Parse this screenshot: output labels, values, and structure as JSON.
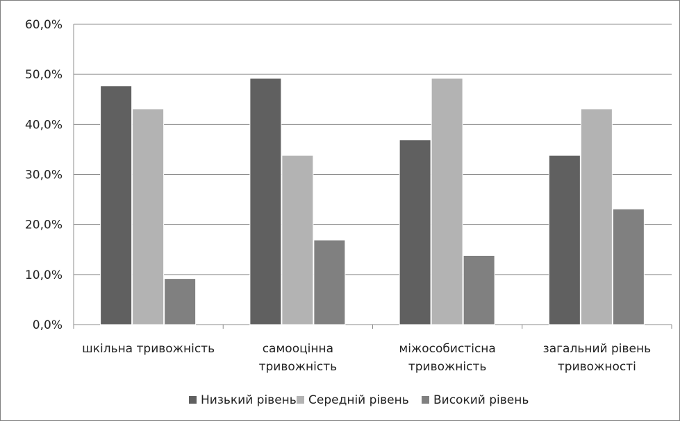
{
  "chart_data": {
    "type": "bar",
    "categories": [
      [
        "шкільна тривожність"
      ],
      [
        "самооцінна",
        "тривожність"
      ],
      [
        "міжособистісна",
        "тривожність"
      ],
      [
        "загальний рівень",
        "тривожності"
      ]
    ],
    "series": [
      {
        "name": "Низький рівень",
        "color": "#606060",
        "values": [
          47.7,
          49.2,
          36.9,
          33.8
        ]
      },
      {
        "name": "Середній рівень",
        "color": "#b3b3b3",
        "values": [
          43.1,
          33.8,
          49.2,
          43.1
        ]
      },
      {
        "name": "Високий рівень",
        "color": "#808080",
        "values": [
          9.2,
          16.9,
          13.8,
          23.1
        ]
      }
    ],
    "ylim": [
      0,
      60
    ],
    "yticks": [
      "0,0%",
      "10,0%",
      "20,0%",
      "30,0%",
      "40,0%",
      "50,0%",
      "60,0%"
    ],
    "grid": true,
    "legend_position": "bottom"
  }
}
